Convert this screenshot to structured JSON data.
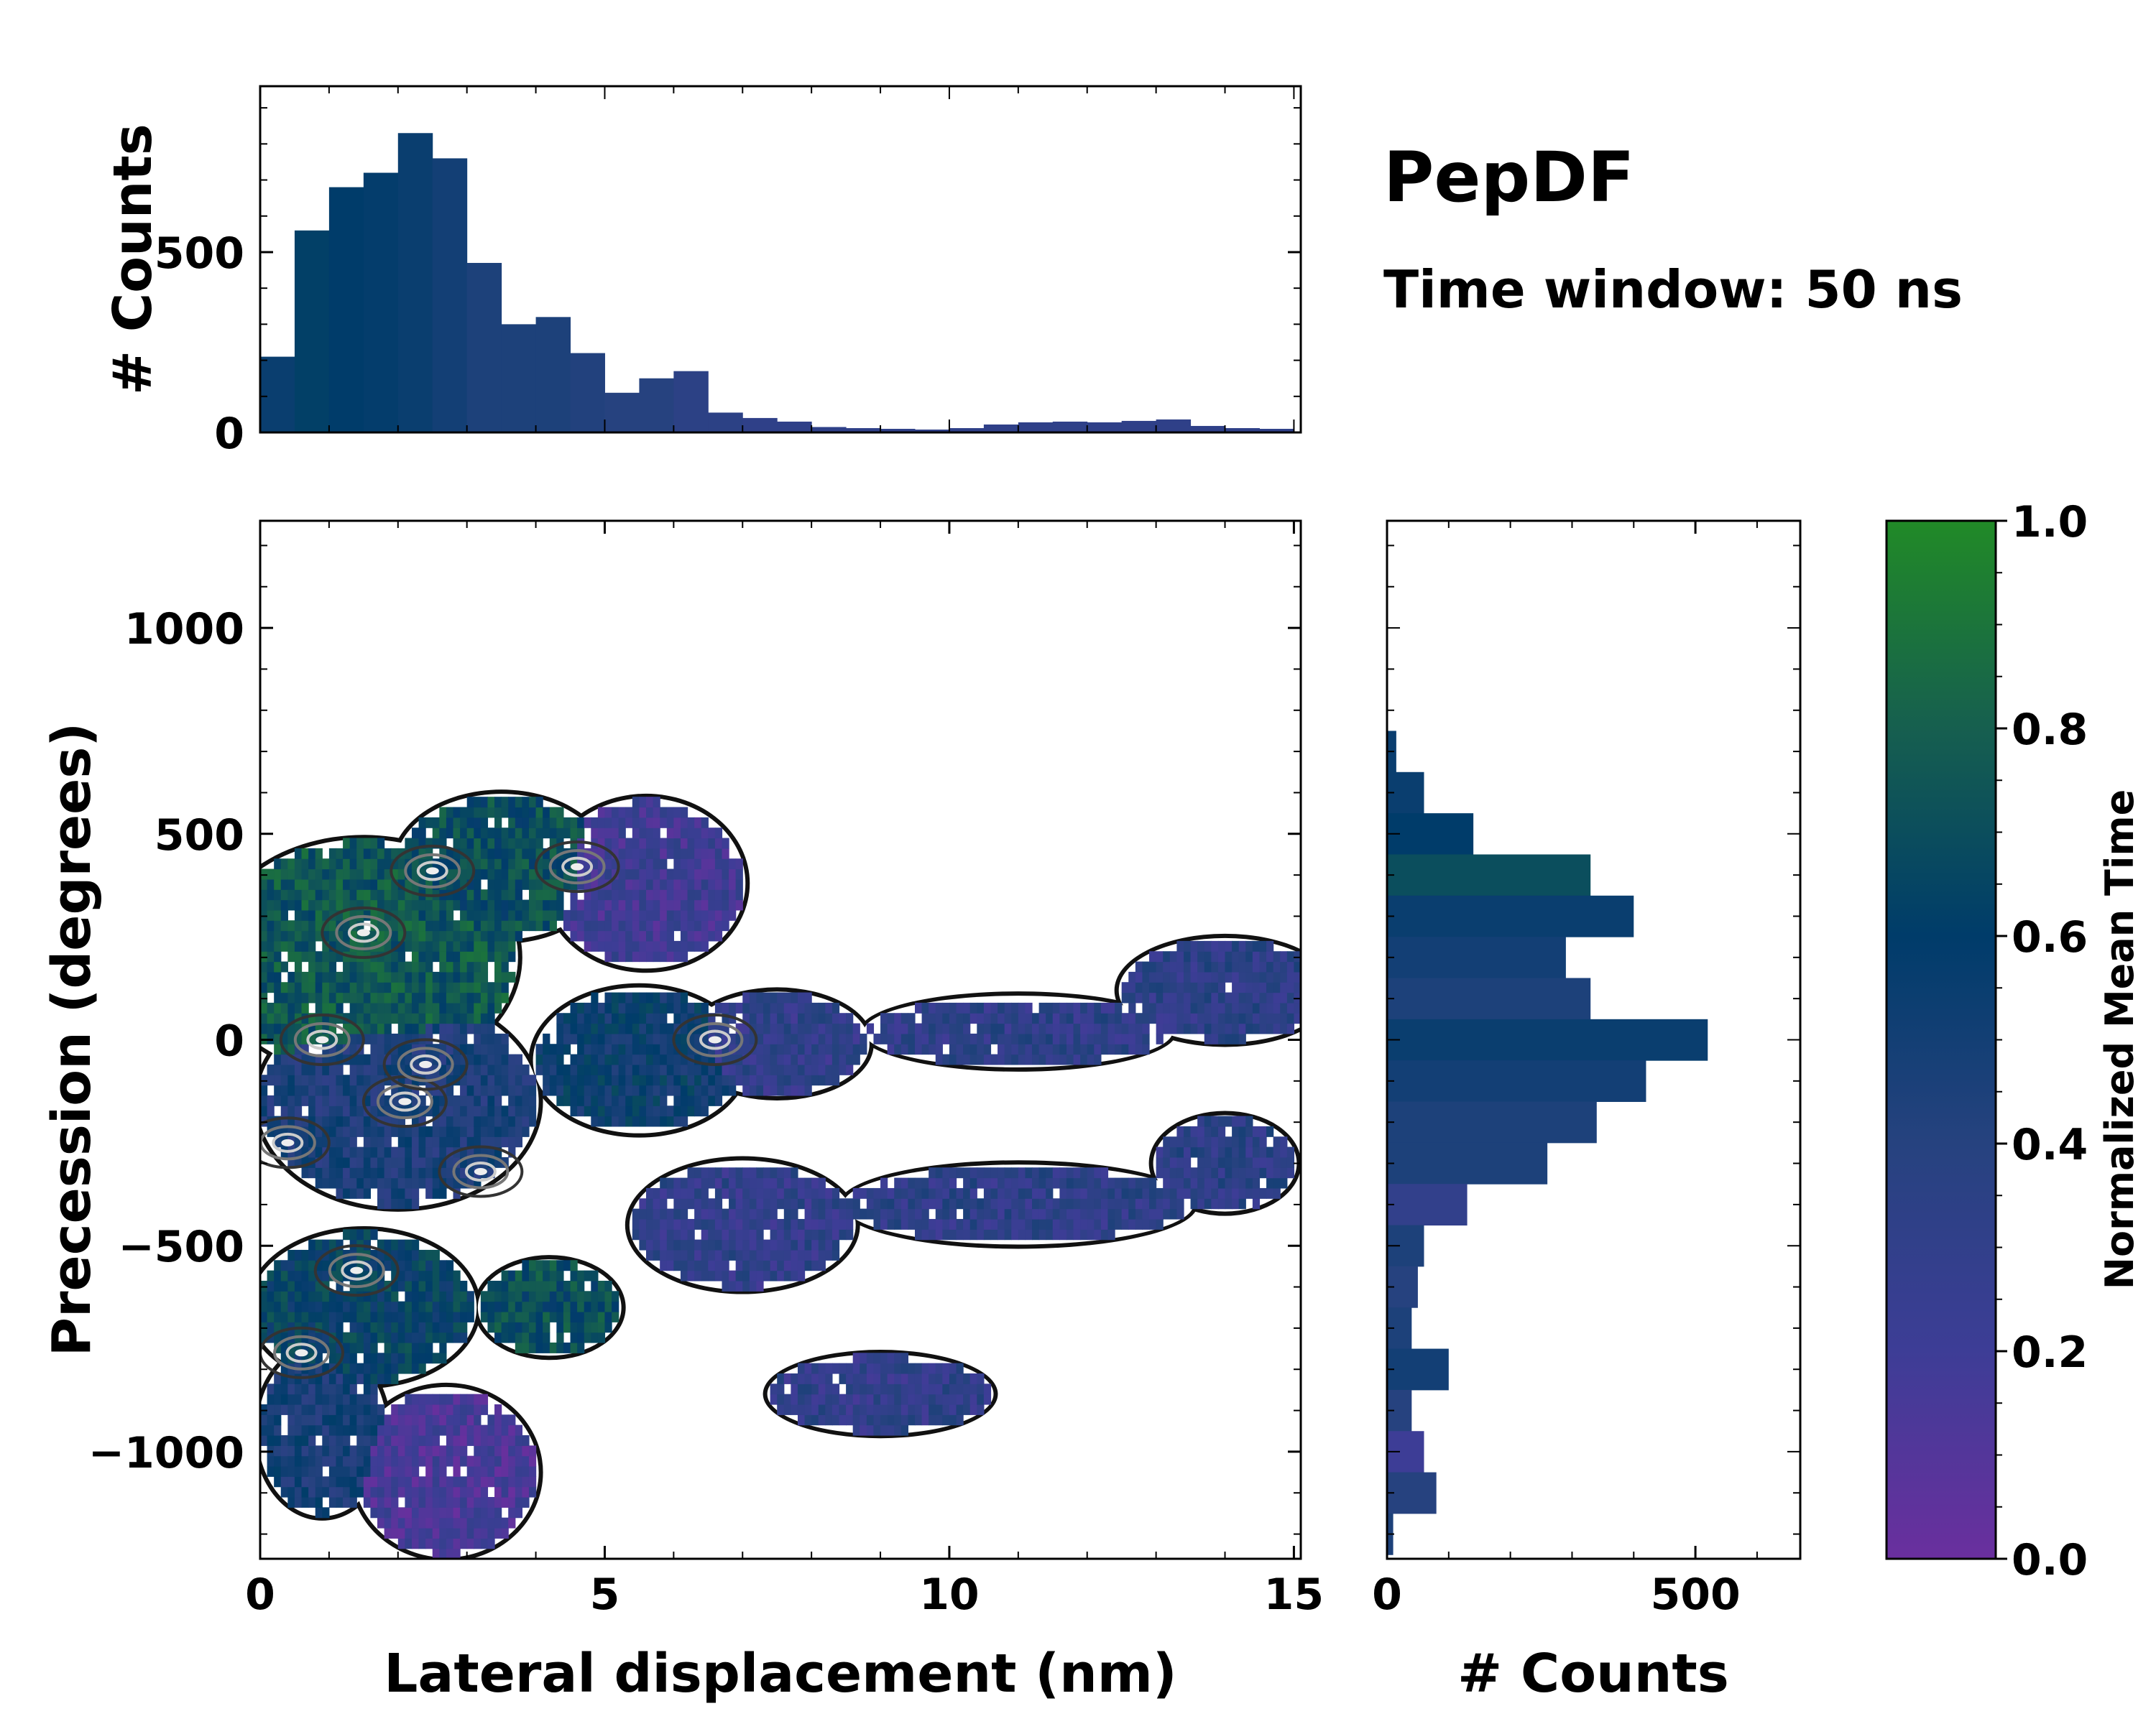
{
  "title": "PepDF",
  "subtitle": "Time window: 50 ns",
  "colormap": {
    "stops": [
      "#6a2f9e",
      "#3d3d96",
      "#26427f",
      "#003c6a",
      "#165f4f",
      "#218a27"
    ]
  },
  "chart_data": [
    {
      "id": "main-heatmap",
      "type": "heatmap",
      "xlabel": "Lateral displacement (nm)",
      "ylabel": "Precession (degrees)",
      "xlim": [
        0,
        15.1
      ],
      "ylim": [
        -1260,
        1260
      ],
      "xticks": [
        0,
        5,
        10,
        15
      ],
      "xtick_labels": [
        "0",
        "5",
        "10",
        "15"
      ],
      "yticks": [
        1000,
        500,
        0,
        -500,
        -1000
      ],
      "ytick_labels": [
        "1000",
        "500",
        "0",
        "−500",
        "−1000"
      ],
      "blobs": [
        {
          "cx": 1.5,
          "cy": 200,
          "rx": 2.2,
          "ry": 280,
          "t": 0.75
        },
        {
          "cx": 3.5,
          "cy": 420,
          "rx": 1.5,
          "ry": 170,
          "t": 0.7
        },
        {
          "cx": 5.6,
          "cy": 380,
          "rx": 1.4,
          "ry": 200,
          "t": 0.2
        },
        {
          "cx": 2.0,
          "cy": -150,
          "rx": 2.0,
          "ry": 250,
          "t": 0.45
        },
        {
          "cx": 5.5,
          "cy": -50,
          "rx": 1.5,
          "ry": 170,
          "t": 0.55
        },
        {
          "cx": 7.5,
          "cy": -10,
          "rx": 1.3,
          "ry": 120,
          "t": 0.3
        },
        {
          "cx": 11.0,
          "cy": 20,
          "rx": 2.2,
          "ry": 80,
          "t": 0.32
        },
        {
          "cx": 14.0,
          "cy": 120,
          "rx": 1.5,
          "ry": 120,
          "t": 0.33
        },
        {
          "cx": 14.0,
          "cy": -300,
          "rx": 1.0,
          "ry": 110,
          "t": 0.34
        },
        {
          "cx": 11.0,
          "cy": -400,
          "rx": 2.5,
          "ry": 90,
          "t": 0.32
        },
        {
          "cx": 7.0,
          "cy": -450,
          "rx": 1.6,
          "ry": 150,
          "t": 0.3
        },
        {
          "cx": 9.0,
          "cy": -860,
          "rx": 1.6,
          "ry": 90,
          "t": 0.3
        },
        {
          "cx": 1.5,
          "cy": -650,
          "rx": 1.6,
          "ry": 180,
          "t": 0.62
        },
        {
          "cx": 4.2,
          "cy": -650,
          "rx": 1.0,
          "ry": 110,
          "t": 0.7
        },
        {
          "cx": 0.9,
          "cy": -950,
          "rx": 0.9,
          "ry": 200,
          "t": 0.48
        },
        {
          "cx": 2.7,
          "cy": -1050,
          "rx": 1.3,
          "ry": 200,
          "t": 0.15
        }
      ],
      "hotspots": [
        {
          "x": 2.5,
          "y": 410
        },
        {
          "x": 1.5,
          "y": 260
        },
        {
          "x": 0.9,
          "y": 0
        },
        {
          "x": 2.1,
          "y": -150
        },
        {
          "x": 0.4,
          "y": -250
        },
        {
          "x": 3.2,
          "y": -320
        },
        {
          "x": 1.4,
          "y": -560
        },
        {
          "x": 0.6,
          "y": -760
        },
        {
          "x": 4.6,
          "y": 420
        },
        {
          "x": 6.6,
          "y": 0
        },
        {
          "x": 2.4,
          "y": -60
        }
      ]
    },
    {
      "id": "top-histogram",
      "type": "bar",
      "ylabel": "# Counts",
      "xlim": [
        0,
        15.1
      ],
      "ylim": [
        0,
        960
      ],
      "yticks": [
        0,
        500
      ],
      "ytick_labels": [
        "0",
        "500"
      ],
      "x_centers": [
        0.25,
        0.75,
        1.25,
        1.75,
        2.25,
        2.75,
        3.25,
        3.75,
        4.25,
        4.75,
        5.25,
        5.75,
        6.25,
        6.75,
        7.25,
        7.75,
        8.25,
        8.75,
        9.25,
        9.75,
        10.25,
        10.75,
        11.25,
        11.75,
        12.25,
        12.75,
        13.25,
        13.75,
        14.25,
        14.75
      ],
      "values": [
        210,
        560,
        680,
        720,
        830,
        760,
        470,
        300,
        320,
        220,
        110,
        150,
        170,
        55,
        40,
        30,
        15,
        12,
        10,
        8,
        12,
        22,
        28,
        30,
        28,
        32,
        36,
        18,
        12,
        10
      ],
      "colors_t": [
        0.55,
        0.62,
        0.6,
        0.58,
        0.55,
        0.5,
        0.45,
        0.45,
        0.45,
        0.42,
        0.4,
        0.4,
        0.35,
        0.35,
        0.32,
        0.32,
        0.32,
        0.32,
        0.32,
        0.32,
        0.32,
        0.32,
        0.32,
        0.32,
        0.32,
        0.32,
        0.32,
        0.32,
        0.32,
        0.32
      ]
    },
    {
      "id": "right-histogram",
      "type": "bar",
      "xlabel": "# Counts",
      "xlim": [
        0,
        670
      ],
      "ylim": [
        -1260,
        1260
      ],
      "xticks": [
        0,
        500
      ],
      "xtick_labels": [
        "0",
        "500"
      ],
      "y_centers": [
        700,
        600,
        500,
        400,
        300,
        200,
        100,
        0,
        -100,
        -200,
        -300,
        -400,
        -500,
        -600,
        -700,
        -800,
        -900,
        -1000,
        -1100,
        -1200
      ],
      "values": [
        15,
        60,
        140,
        330,
        400,
        290,
        330,
        520,
        420,
        340,
        260,
        130,
        60,
        50,
        40,
        100,
        40,
        60,
        80,
        10
      ],
      "colors_t": [
        0.55,
        0.55,
        0.6,
        0.7,
        0.55,
        0.5,
        0.45,
        0.55,
        0.5,
        0.45,
        0.45,
        0.3,
        0.45,
        0.4,
        0.45,
        0.5,
        0.4,
        0.2,
        0.4,
        0.45
      ]
    },
    {
      "id": "colorbar",
      "type": "colorbar",
      "label": "Normalized Mean Time",
      "range": [
        0.0,
        1.0
      ],
      "ticks": [
        0.0,
        0.2,
        0.4,
        0.6,
        0.8,
        1.0
      ],
      "tick_labels": [
        "0.0",
        "0.2",
        "0.4",
        "0.6",
        "0.8",
        "1.0"
      ]
    }
  ]
}
